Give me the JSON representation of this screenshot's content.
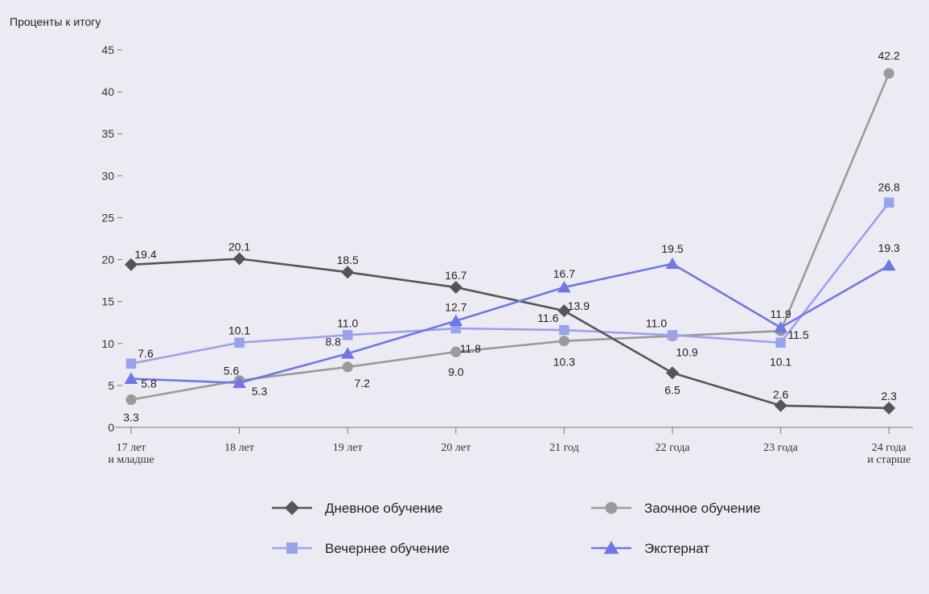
{
  "chart_data": {
    "type": "line",
    "ylabel": "Проценты к итогу",
    "ylim": [
      0,
      45
    ],
    "yticks": [
      0,
      5,
      10,
      15,
      20,
      25,
      30,
      35,
      40,
      45
    ],
    "categories": [
      [
        "17 лет",
        "и младше"
      ],
      [
        "18 лет"
      ],
      [
        "19 лет"
      ],
      [
        "20 лет"
      ],
      [
        "21 год"
      ],
      [
        "22 года"
      ],
      [
        "23 года"
      ],
      [
        "24 года",
        "и старше"
      ]
    ],
    "grid": false,
    "legend_position": "bottom",
    "series": [
      {
        "name": "Дневное обучение",
        "color": "#555555",
        "marker": "diamond",
        "values": [
          19.4,
          20.1,
          18.5,
          16.7,
          13.9,
          6.5,
          2.6,
          2.3
        ],
        "labels": [
          "19.4",
          "20.1",
          "18.5",
          "16.7",
          "13.9",
          "6.5",
          "2.6",
          "2.3"
        ]
      },
      {
        "name": "Заочное обучение",
        "color": "#9a9a9a",
        "marker": "circle",
        "values": [
          3.3,
          5.6,
          7.2,
          9.0,
          10.3,
          10.9,
          11.5,
          42.2
        ],
        "labels": [
          "3.3",
          "5.6",
          "7.2",
          "9.0",
          "10.3",
          "10.9",
          "11.5",
          "42.2"
        ]
      },
      {
        "name": "Вечернее обучение",
        "color": "#9aa3ea",
        "marker": "square",
        "values": [
          7.6,
          10.1,
          11.0,
          11.8,
          11.6,
          11.0,
          10.1,
          26.8
        ],
        "labels": [
          "7.6",
          "10.1",
          "11.0",
          "11.8",
          "11.6",
          "11.0",
          "10.1",
          "26.8"
        ]
      },
      {
        "name": "Экстернат",
        "color": "#6f78e2",
        "marker": "triangle",
        "values": [
          5.8,
          5.3,
          8.8,
          12.7,
          16.7,
          19.5,
          11.9,
          19.3
        ],
        "labels": [
          "5.8",
          "5.3",
          "8.8",
          "12.7",
          "16.7",
          "19.5",
          "11.9",
          "19.3"
        ]
      }
    ]
  }
}
